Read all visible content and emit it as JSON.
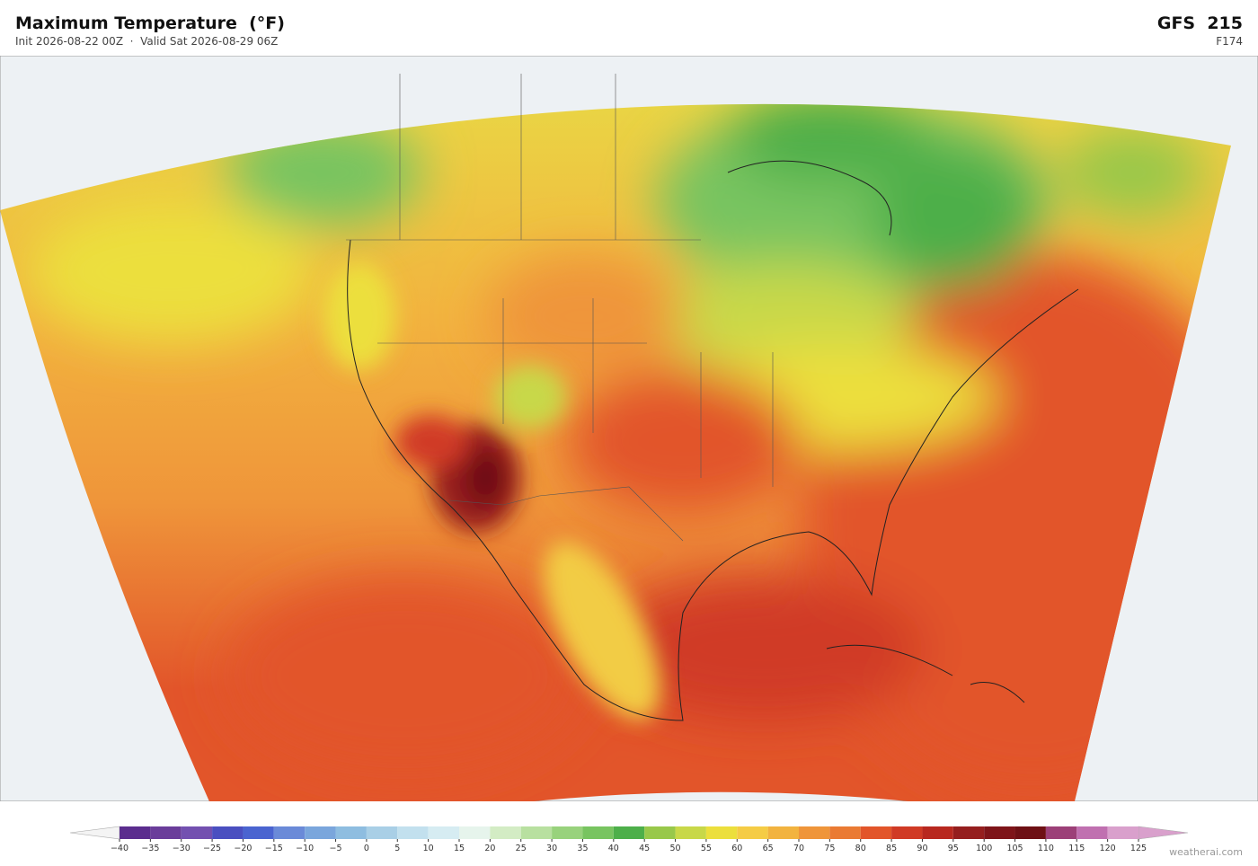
{
  "header": {
    "title": "Maximum Temperature  (°F)",
    "subtitle": "Init 2026-08-22 00Z  ·  Valid Sat 2026-08-29 06Z",
    "model": "GFS  215",
    "forecast_hour": "F174"
  },
  "colorbar": {
    "ticks": [
      {
        "value": -40,
        "label": "−40"
      },
      {
        "value": -35,
        "label": "−35"
      },
      {
        "value": -30,
        "label": "−30"
      },
      {
        "value": -25,
        "label": "−25"
      },
      {
        "value": -20,
        "label": "−20"
      },
      {
        "value": -15,
        "label": "−15"
      },
      {
        "value": -10,
        "label": "−10"
      },
      {
        "value": -5,
        "label": "−5"
      },
      0,
      5,
      10,
      15,
      20,
      25,
      30,
      35,
      40,
      45,
      50,
      55,
      60,
      65,
      70,
      75,
      80,
      85,
      90,
      95,
      100,
      105,
      110,
      115,
      120,
      125
    ],
    "colors": [
      "#5b2d8e",
      "#6a3d9a",
      "#7350b0",
      "#4a4fc0",
      "#4a64d0",
      "#6a8ad8",
      "#7aa6dc",
      "#8ebde0",
      "#a9cfe6",
      "#c2e0ee",
      "#d6ecf2",
      "#e6f4ec",
      "#d3ecc4",
      "#b8e0a0",
      "#98d27c",
      "#78c460",
      "#4daf4a",
      "#98c84a",
      "#c8d848",
      "#ecdf3c",
      "#f5cc45",
      "#f2b33f",
      "#ef953a",
      "#ea7a33",
      "#e2552a",
      "#d03a25",
      "#b8281f",
      "#951e1e",
      "#7e1419",
      "#6e1015",
      "#9c4078",
      "#c070b0",
      "#d9a0cc"
    ],
    "under_color": "#f4f4f4",
    "over_color": "#d9a0cc"
  },
  "credit": "weatherai.com"
}
